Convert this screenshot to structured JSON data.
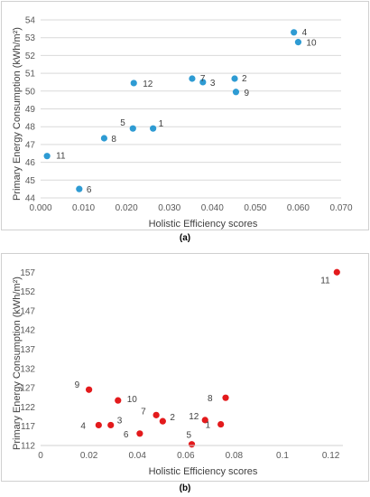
{
  "chart_data": [
    {
      "type": "scatter",
      "panel_label": "(a)",
      "xlabel": "Holistic Efficiency scores",
      "ylabel": "Primary Energy Consumption (kWh/m²)",
      "xlim": [
        0.0,
        0.07
      ],
      "ylim": [
        44,
        54
      ],
      "x_ticks": [
        "0.000",
        "0.010",
        "0.020",
        "0.030",
        "0.040",
        "0.050",
        "0.060",
        "0.070"
      ],
      "y_ticks": [
        "44",
        "45",
        "46",
        "47",
        "48",
        "49",
        "50",
        "51",
        "52",
        "53",
        "54"
      ],
      "grid": "horizontal",
      "marker_color": "#2e9bd3",
      "points": [
        {
          "label": "1",
          "x": 0.0262,
          "y": 47.9
        },
        {
          "label": "2",
          "x": 0.0452,
          "y": 50.7
        },
        {
          "label": "3",
          "x": 0.0378,
          "y": 50.5
        },
        {
          "label": "4",
          "x": 0.059,
          "y": 53.3
        },
        {
          "label": "5",
          "x": 0.0215,
          "y": 47.9
        },
        {
          "label": "6",
          "x": 0.009,
          "y": 44.5
        },
        {
          "label": "7",
          "x": 0.0353,
          "y": 50.7
        },
        {
          "label": "8",
          "x": 0.0148,
          "y": 47.35
        },
        {
          "label": "9",
          "x": 0.0455,
          "y": 49.95
        },
        {
          "label": "10",
          "x": 0.06,
          "y": 52.75
        },
        {
          "label": "11",
          "x": 0.0015,
          "y": 46.35
        },
        {
          "label": "12",
          "x": 0.0217,
          "y": 50.45
        }
      ]
    },
    {
      "type": "scatter",
      "panel_label": "(b)",
      "xlabel": "Holistic Efficiency scores",
      "ylabel": "Primary Energy Consumption (kWh/m²)",
      "xlim": [
        0,
        0.125
      ],
      "ylim": [
        112,
        158
      ],
      "x_ticks": [
        "0",
        "0.02",
        "0.04",
        "0.06",
        "0.08",
        "0.1",
        "0.12"
      ],
      "y_ticks": [
        "112",
        "117",
        "122",
        "127",
        "132",
        "137",
        "142",
        "147",
        "152",
        "157"
      ],
      "grid": "none",
      "marker_color": "#e31a1c",
      "points": [
        {
          "label": "1",
          "x": 0.0745,
          "y": 117.5
        },
        {
          "label": "2",
          "x": 0.0505,
          "y": 118.3
        },
        {
          "label": "3",
          "x": 0.029,
          "y": 117.3
        },
        {
          "label": "4",
          "x": 0.024,
          "y": 117.3
        },
        {
          "label": "5",
          "x": 0.0625,
          "y": 112.3
        },
        {
          "label": "6",
          "x": 0.041,
          "y": 115.1
        },
        {
          "label": "7",
          "x": 0.0478,
          "y": 119.9
        },
        {
          "label": "8",
          "x": 0.0765,
          "y": 124.4
        },
        {
          "label": "9",
          "x": 0.02,
          "y": 126.5
        },
        {
          "label": "10",
          "x": 0.032,
          "y": 123.7
        },
        {
          "label": "11",
          "x": 0.1225,
          "y": 157.0
        },
        {
          "label": "12",
          "x": 0.068,
          "y": 118.6
        }
      ]
    }
  ]
}
